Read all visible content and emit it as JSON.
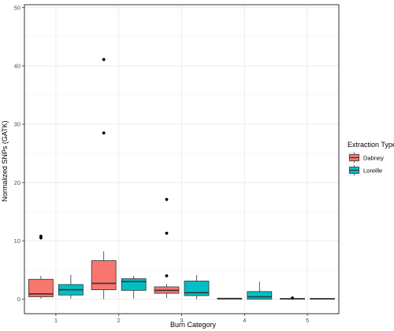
{
  "chart_data": {
    "type": "boxplot",
    "xlabel": "Burn Category",
    "ylabel": "Normalized SNPs (GATK)",
    "categories": [
      "1",
      "2",
      "3",
      "4",
      "5"
    ],
    "ylim": [
      -2.5,
      50.5
    ],
    "y_ticks": [
      0,
      10,
      20,
      30,
      40,
      50
    ],
    "grid": true,
    "legend": {
      "title": "Extraction Type",
      "placement": "right",
      "entries": [
        "Dabney",
        "Loreille"
      ]
    },
    "series": [
      {
        "name": "Dabney",
        "color": "#F8766D",
        "boxes": [
          {
            "category": "1",
            "whisker_low": 0.1,
            "q1": 0.4,
            "median": 0.9,
            "q3": 3.4,
            "whisker_high": 4.0,
            "outliers": [
              10.5,
              10.8
            ]
          },
          {
            "category": "2",
            "whisker_low": 0.0,
            "q1": 1.6,
            "median": 2.7,
            "q3": 6.6,
            "whisker_high": 8.2,
            "outliers": [
              28.5,
              41.1
            ]
          },
          {
            "category": "3",
            "whisker_low": 0.2,
            "q1": 1.0,
            "median": 1.5,
            "q3": 2.1,
            "whisker_high": 2.6,
            "outliers": [
              4.0,
              11.3,
              17.1
            ]
          },
          {
            "category": "4",
            "whisker_low": 0.0,
            "q1": 0.0,
            "median": 0.1,
            "q3": 0.15,
            "whisker_high": 0.2,
            "outliers": []
          },
          {
            "category": "5",
            "whisker_low": 0.0,
            "q1": 0.0,
            "median": 0.05,
            "q3": 0.1,
            "whisker_high": 0.15,
            "outliers": [
              0.2
            ]
          }
        ]
      },
      {
        "name": "Loreille",
        "color": "#00BFC4",
        "boxes": [
          {
            "category": "1",
            "whisker_low": 0.1,
            "q1": 0.7,
            "median": 1.6,
            "q3": 2.5,
            "whisker_high": 4.2,
            "outliers": []
          },
          {
            "category": "2",
            "whisker_low": 0.1,
            "q1": 1.5,
            "median": 3.0,
            "q3": 3.5,
            "whisker_high": 4.0,
            "outliers": []
          },
          {
            "category": "3",
            "whisker_low": 0.0,
            "q1": 0.6,
            "median": 1.1,
            "q3": 3.1,
            "whisker_high": 4.1,
            "outliers": []
          },
          {
            "category": "4",
            "whisker_low": 0.0,
            "q1": 0.0,
            "median": 0.4,
            "q3": 1.3,
            "whisker_high": 3.0,
            "outliers": []
          },
          {
            "category": "5",
            "whisker_low": 0.0,
            "q1": 0.0,
            "median": 0.05,
            "q3": 0.1,
            "whisker_high": 0.15,
            "outliers": []
          }
        ]
      }
    ]
  }
}
